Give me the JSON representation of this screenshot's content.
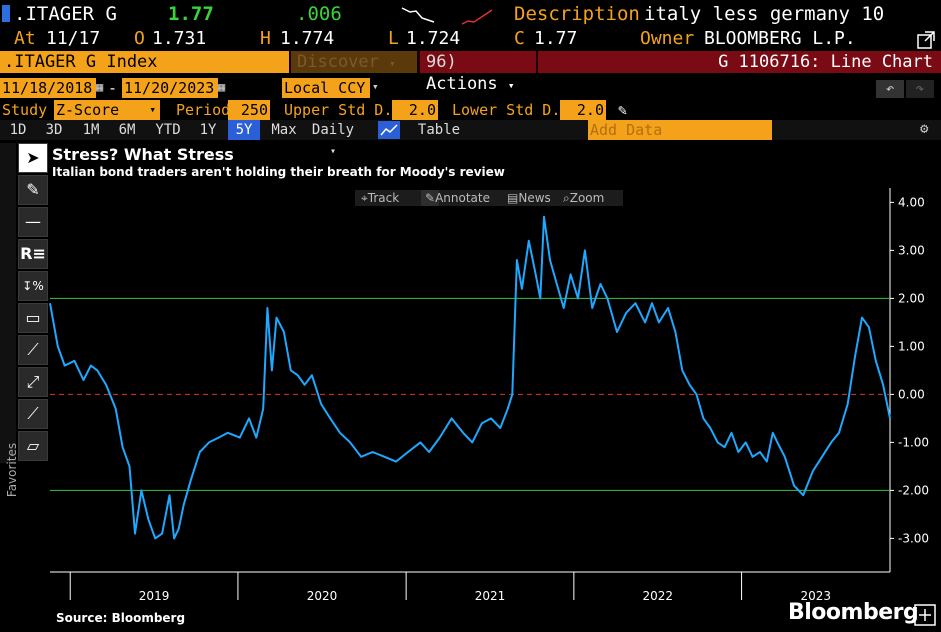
{
  "header": {
    "ticker": ".ITAGER G",
    "last": "1.77",
    "change": ".006",
    "description_label": "Description",
    "description": "italy less germany 10",
    "at_label": "At",
    "at_date": "11/17",
    "open_label": "O",
    "open": "1.731",
    "high_label": "H",
    "high": "1.774",
    "low_label": "L",
    "low": "1.724",
    "close_label": "C",
    "close": "1.77",
    "owner_label": "Owner",
    "owner": "BLOOMBERG L.P."
  },
  "command_bar": {
    "security": ".ITAGER G Index",
    "discover": "Discover",
    "actions_num": "96)",
    "actions": "Actions",
    "function_title": "G 1106716: Line Chart"
  },
  "range": {
    "start": "11/18/2018",
    "sep": "-",
    "end": "11/20/2023",
    "currency": "Local CCY"
  },
  "study": {
    "study_label": "Study",
    "study_value": "Z-Score",
    "period_label": "Period",
    "period_value": "250",
    "upper_label": "Upper Std D...",
    "upper_value": "2.0",
    "lower_label": "Lower Std D...",
    "lower_value": "2.0"
  },
  "periods": [
    "1D",
    "3D",
    "1M",
    "6M",
    "YTD",
    "1Y",
    "5Y",
    "Max"
  ],
  "active_period": "5Y",
  "frequency": "Daily",
  "table_label": "Table",
  "add_data_placeholder": "Add Data",
  "favorites_label": "Favorites",
  "chart_toolbar": {
    "track": "Track",
    "annotate": "Annotate",
    "news": "News",
    "zoom": "Zoom"
  },
  "colors": {
    "accent_orange": "#f5a21b",
    "last_green": "#37d637",
    "action_red": "#7a0a14",
    "series_blue": "#1ea8ff",
    "band_green": "#3cc43c",
    "mean_red": "#e03030"
  },
  "source": "Source: Bloomberg",
  "brand": "Bloomberg",
  "chart_data": {
    "type": "line",
    "title": "Stress? What Stress",
    "subtitle": "Italian bond traders aren't holding their breath for Moody's review",
    "xlabel": "",
    "ylabel": "",
    "x_tick_labels": [
      "2019",
      "2020",
      "2021",
      "2022",
      "2023"
    ],
    "y_tick_labels": [
      "4.00",
      "3.00",
      "2.00",
      "1.00",
      "0.00",
      "-1.00",
      "-2.00",
      "-3.00"
    ],
    "ylim": [
      -3.7,
      4.3
    ],
    "xlim": [
      "2018-11-18",
      "2023-11-20"
    ],
    "reference_lines": [
      {
        "y": 2.0,
        "style": "solid",
        "color": "#3cc43c"
      },
      {
        "y": 0.0,
        "style": "dashed",
        "color": "#e03030"
      },
      {
        "y": -2.0,
        "style": "solid",
        "color": "#3cc43c"
      }
    ],
    "grid": false,
    "legend": "none",
    "series": [
      {
        "x": [
          "2018-11-18",
          "2018-12-05",
          "2018-12-20",
          "2019-01-10",
          "2019-01-30",
          "2019-02-15",
          "2019-03-01",
          "2019-03-20",
          "2019-04-10",
          "2019-04-25",
          "2019-05-10",
          "2019-05-22",
          "2019-06-05",
          "2019-06-20",
          "2019-07-05",
          "2019-07-20",
          "2019-08-05",
          "2019-08-15",
          "2019-08-25",
          "2019-09-05",
          "2019-09-20",
          "2019-10-10",
          "2019-10-30",
          "2019-11-20",
          "2019-12-10",
          "2020-01-05",
          "2020-01-25",
          "2020-02-10",
          "2020-02-25",
          "2020-03-05",
          "2020-03-15",
          "2020-03-25",
          "2020-04-10",
          "2020-04-25",
          "2020-05-10",
          "2020-05-25",
          "2020-06-10",
          "2020-06-30",
          "2020-07-20",
          "2020-08-10",
          "2020-09-01",
          "2020-09-25",
          "2020-10-20",
          "2020-11-15",
          "2020-12-10",
          "2021-01-05",
          "2021-02-01",
          "2021-02-20",
          "2021-03-15",
          "2021-04-10",
          "2021-05-05",
          "2021-05-25",
          "2021-06-15",
          "2021-07-05",
          "2021-07-25",
          "2021-08-10",
          "2021-08-20",
          "2021-08-30",
          "2021-09-10",
          "2021-09-25",
          "2021-10-10",
          "2021-10-20",
          "2021-10-28",
          "2021-11-10",
          "2021-11-25",
          "2021-12-10",
          "2021-12-25",
          "2022-01-10",
          "2022-01-25",
          "2022-02-10",
          "2022-02-28",
          "2022-03-15",
          "2022-04-05",
          "2022-04-25",
          "2022-05-15",
          "2022-06-05",
          "2022-06-20",
          "2022-07-05",
          "2022-07-25",
          "2022-08-10",
          "2022-08-25",
          "2022-09-10",
          "2022-09-25",
          "2022-10-10",
          "2022-10-25",
          "2022-11-10",
          "2022-11-25",
          "2022-12-10",
          "2022-12-25",
          "2023-01-10",
          "2023-01-25",
          "2023-02-10",
          "2023-02-25",
          "2023-03-10",
          "2023-03-20",
          "2023-04-05",
          "2023-04-25",
          "2023-05-15",
          "2023-06-05",
          "2023-06-25",
          "2023-07-15",
          "2023-08-01",
          "2023-08-20",
          "2023-09-05",
          "2023-09-20",
          "2023-10-05",
          "2023-10-20",
          "2023-11-05",
          "2023-11-20"
        ],
        "values": [
          1.9,
          1.0,
          0.6,
          0.7,
          0.3,
          0.6,
          0.5,
          0.2,
          -0.3,
          -1.1,
          -1.5,
          -2.9,
          -2.0,
          -2.6,
          -3.0,
          -2.9,
          -2.1,
          -3.0,
          -2.8,
          -2.3,
          -1.8,
          -1.2,
          -1.0,
          -0.9,
          -0.8,
          -0.9,
          -0.5,
          -0.9,
          -0.3,
          1.8,
          0.5,
          1.6,
          1.3,
          0.5,
          0.4,
          0.2,
          0.4,
          -0.2,
          -0.5,
          -0.8,
          -1.0,
          -1.3,
          -1.2,
          -1.3,
          -1.4,
          -1.2,
          -1.0,
          -1.2,
          -0.9,
          -0.5,
          -0.8,
          -1.0,
          -0.6,
          -0.5,
          -0.7,
          -0.3,
          0.0,
          2.8,
          2.2,
          3.2,
          2.5,
          2.0,
          3.7,
          2.8,
          2.3,
          1.8,
          2.5,
          2.0,
          3.0,
          1.8,
          2.3,
          2.0,
          1.3,
          1.7,
          1.9,
          1.5,
          1.9,
          1.5,
          1.8,
          1.3,
          0.5,
          0.2,
          0.0,
          -0.5,
          -0.7,
          -1.0,
          -1.1,
          -0.8,
          -1.2,
          -1.0,
          -1.3,
          -1.2,
          -1.4,
          -0.8,
          -1.0,
          -1.3,
          -1.9,
          -2.1,
          -1.6,
          -1.3,
          -1.0,
          -0.8,
          -0.2,
          0.8,
          1.6,
          1.4,
          0.7,
          0.2,
          -0.5
        ]
      }
    ]
  }
}
